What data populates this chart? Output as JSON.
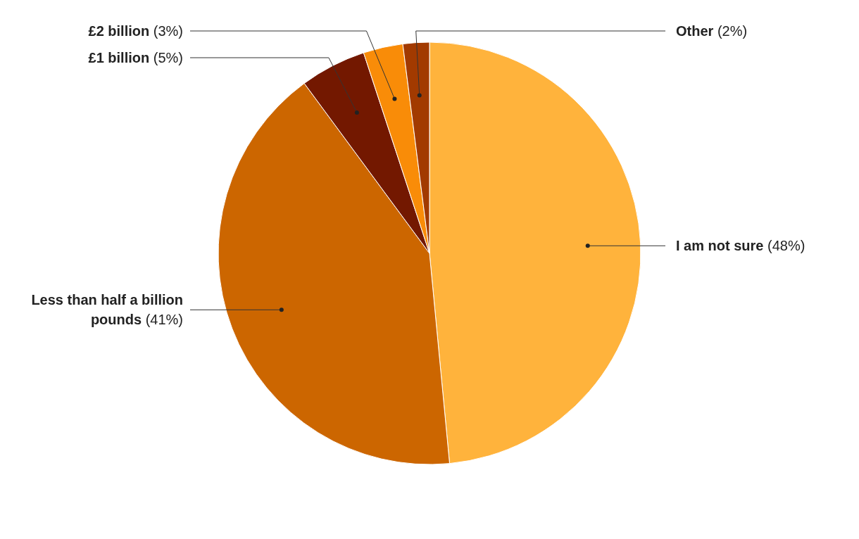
{
  "chart_data": {
    "type": "pie",
    "categories": [
      "I am not sure",
      "Less than half a billion pounds",
      "£1 billion",
      "£2 billion",
      "Other"
    ],
    "values": [
      48,
      41,
      5,
      3,
      2
    ],
    "value_labels": [
      "(48%)",
      "(41%)",
      "(5%)",
      "(3%)",
      "(2%)"
    ],
    "colors": [
      "#ffb33c",
      "#cc6600",
      "#731800",
      "#f98c08",
      "#a23a00"
    ]
  }
}
